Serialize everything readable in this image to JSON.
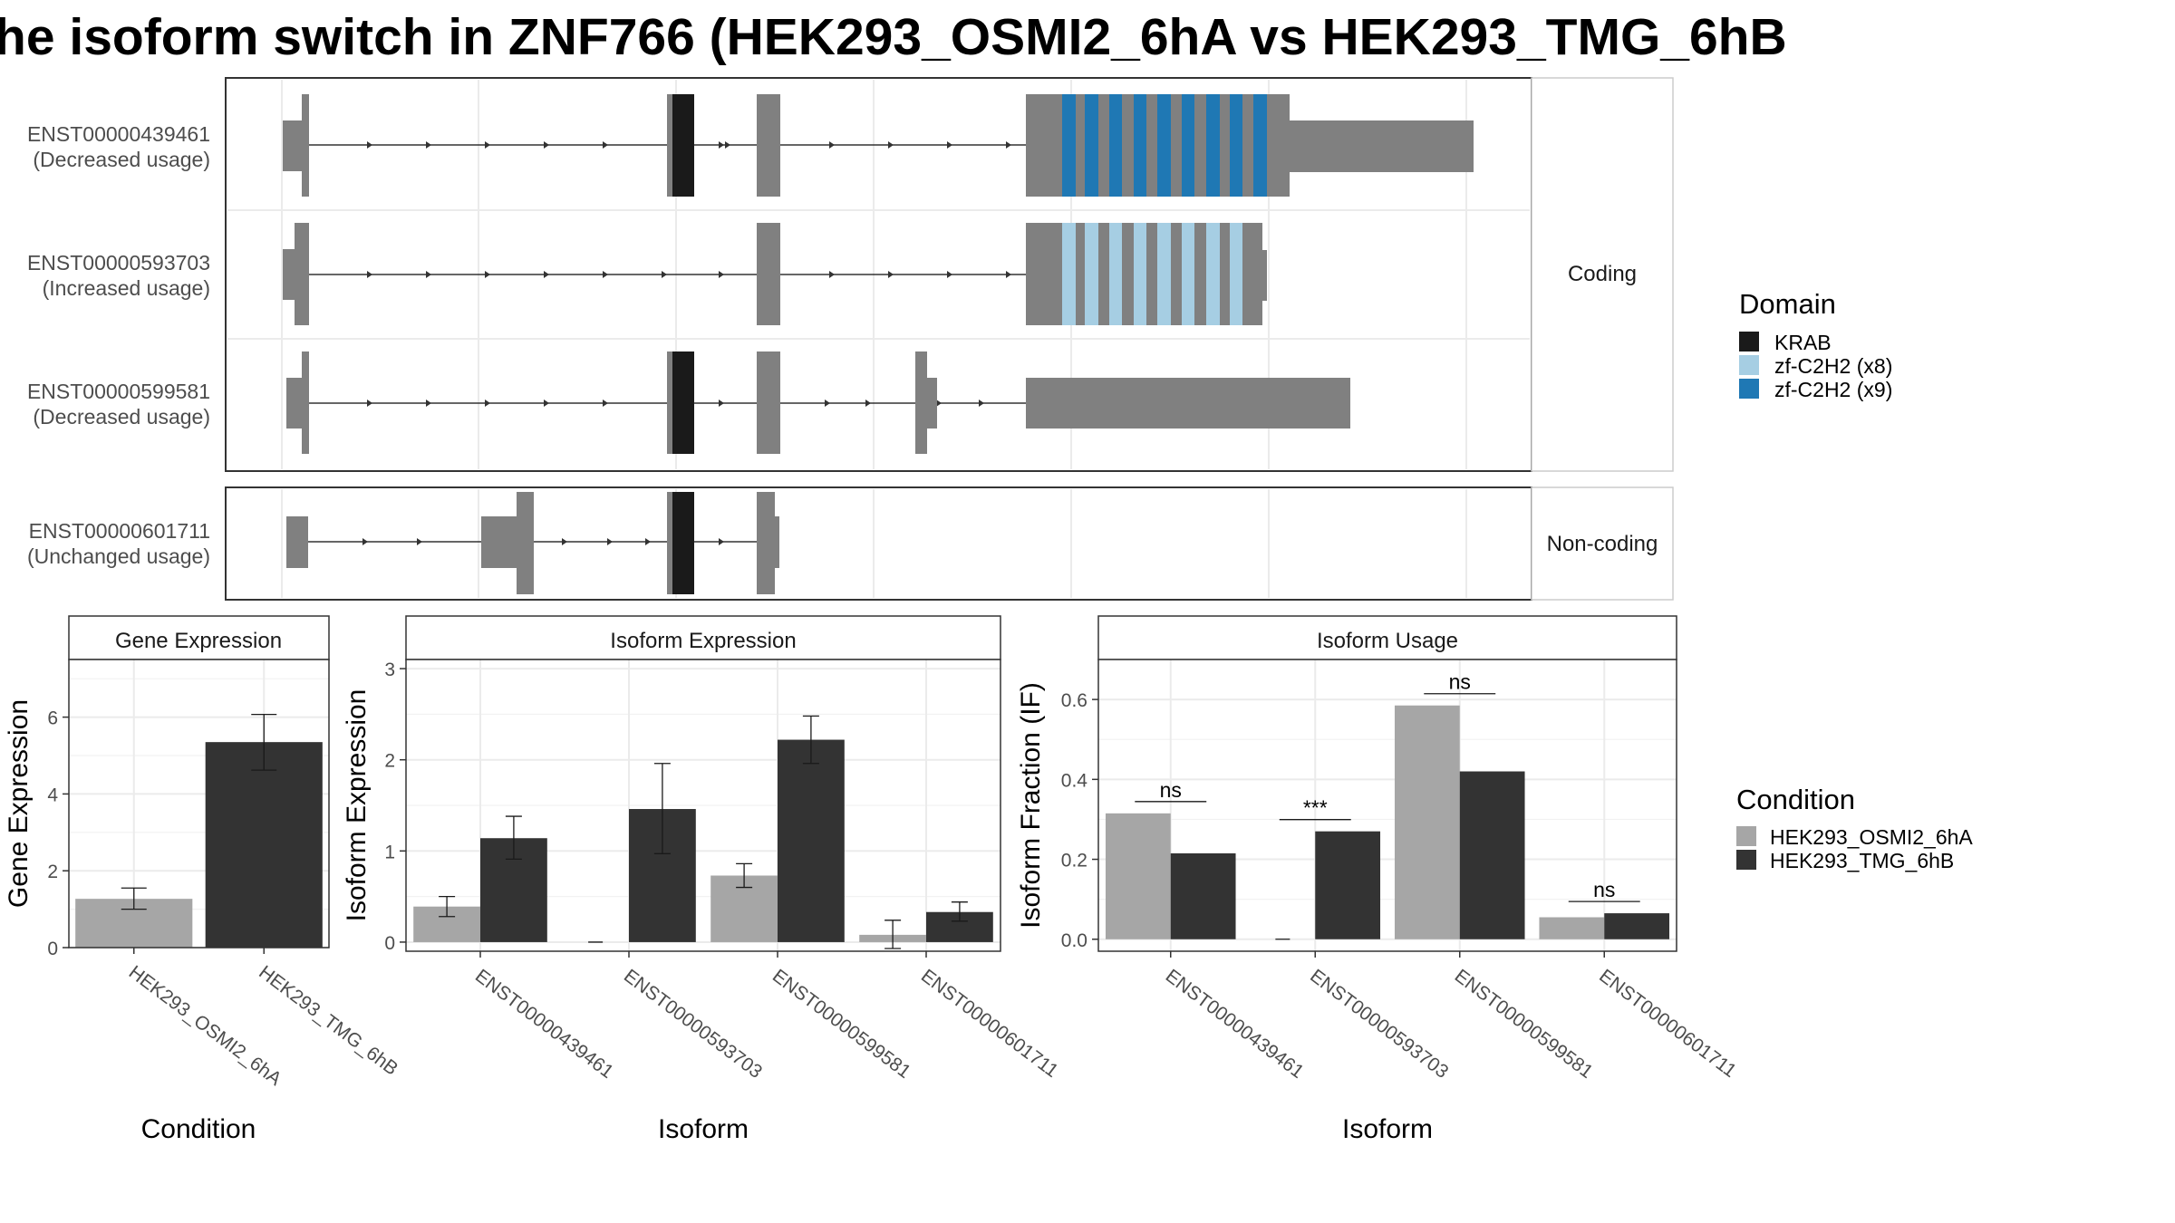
{
  "title": "he isoform switch in ZNF766 (HEK293_OSMI2_6hA vs HEK293_TMG_6hB",
  "colors": {
    "exon": "#808080",
    "krab": "#1a1a1a",
    "zf8": "#a6cee3",
    "zf9": "#1f78b4",
    "condA": "#a6a6a6",
    "condB": "#333333"
  },
  "structure": {
    "panel_labels": [
      "Coding",
      "Non-coding"
    ],
    "transcripts": [
      {
        "id": "ENST00000439461",
        "usage": "(Decreased usage)",
        "group": "Coding"
      },
      {
        "id": "ENST00000593703",
        "usage": "(Increased usage)",
        "group": "Coding"
      },
      {
        "id": "ENST00000599581",
        "usage": "(Decreased usage)",
        "group": "Coding"
      },
      {
        "id": "ENST00000601711",
        "usage": "(Unchanged usage)",
        "group": "Non-coding"
      }
    ]
  },
  "legend_domain": {
    "title": "Domain",
    "items": [
      {
        "label": "KRAB",
        "color": "#1a1a1a"
      },
      {
        "label": "zf-C2H2 (x8)",
        "color": "#a6cee3"
      },
      {
        "label": "zf-C2H2 (x9)",
        "color": "#1f78b4"
      }
    ]
  },
  "legend_condition": {
    "title": "Condition",
    "items": [
      {
        "label": "HEK293_OSMI2_6hA",
        "color": "#a6a6a6"
      },
      {
        "label": "HEK293_TMG_6hB",
        "color": "#333333"
      }
    ]
  },
  "chart_data": [
    {
      "type": "bar",
      "title": "Gene Expression",
      "xlabel": "Condition",
      "ylabel": "Gene Expression",
      "ylim": [
        0,
        7.5
      ],
      "yticks": [
        0,
        2,
        4,
        6
      ],
      "categories": [
        "HEK293_OSMI2_6hA",
        "HEK293_TMG_6hB"
      ],
      "values": [
        1.27,
        5.35
      ],
      "errors": [
        [
          1.0,
          1.55
        ],
        [
          4.62,
          6.07
        ]
      ]
    },
    {
      "type": "bar",
      "title": "Isoform Expression",
      "xlabel": "Isoform",
      "ylabel": "Isoform Expression",
      "ylim": [
        -0.1,
        3.1
      ],
      "yticks": [
        0,
        1,
        2,
        3
      ],
      "categories": [
        "ENST00000439461",
        "ENST00000593703",
        "ENST00000599581",
        "ENST00000601711"
      ],
      "series": [
        {
          "name": "HEK293_OSMI2_6hA",
          "values": [
            0.39,
            0.0,
            0.73,
            0.08
          ],
          "errors": [
            [
              0.28,
              0.5
            ],
            [
              0.0,
              0.0
            ],
            [
              0.6,
              0.86
            ],
            [
              -0.07,
              0.24
            ]
          ]
        },
        {
          "name": "HEK293_TMG_6hB",
          "values": [
            1.14,
            1.46,
            2.22,
            0.33
          ],
          "errors": [
            [
              0.91,
              1.38
            ],
            [
              0.97,
              1.96
            ],
            [
              1.96,
              2.48
            ],
            [
              0.23,
              0.44
            ]
          ]
        }
      ]
    },
    {
      "type": "bar",
      "title": "Isoform Usage",
      "xlabel": "Isoform",
      "ylabel": "Isoform Fraction (IF)",
      "ylim": [
        -0.03,
        0.7
      ],
      "yticks": [
        0.0,
        0.2,
        0.4,
        0.6
      ],
      "categories": [
        "ENST00000439461",
        "ENST00000593703",
        "ENST00000599581",
        "ENST00000601711"
      ],
      "series": [
        {
          "name": "HEK293_OSMI2_6hA",
          "values": [
            0.315,
            0.0,
            0.585,
            0.055
          ]
        },
        {
          "name": "HEK293_TMG_6hB",
          "values": [
            0.215,
            0.27,
            0.42,
            0.065
          ]
        }
      ],
      "significance": [
        "ns",
        "***",
        "ns",
        "ns"
      ]
    }
  ]
}
